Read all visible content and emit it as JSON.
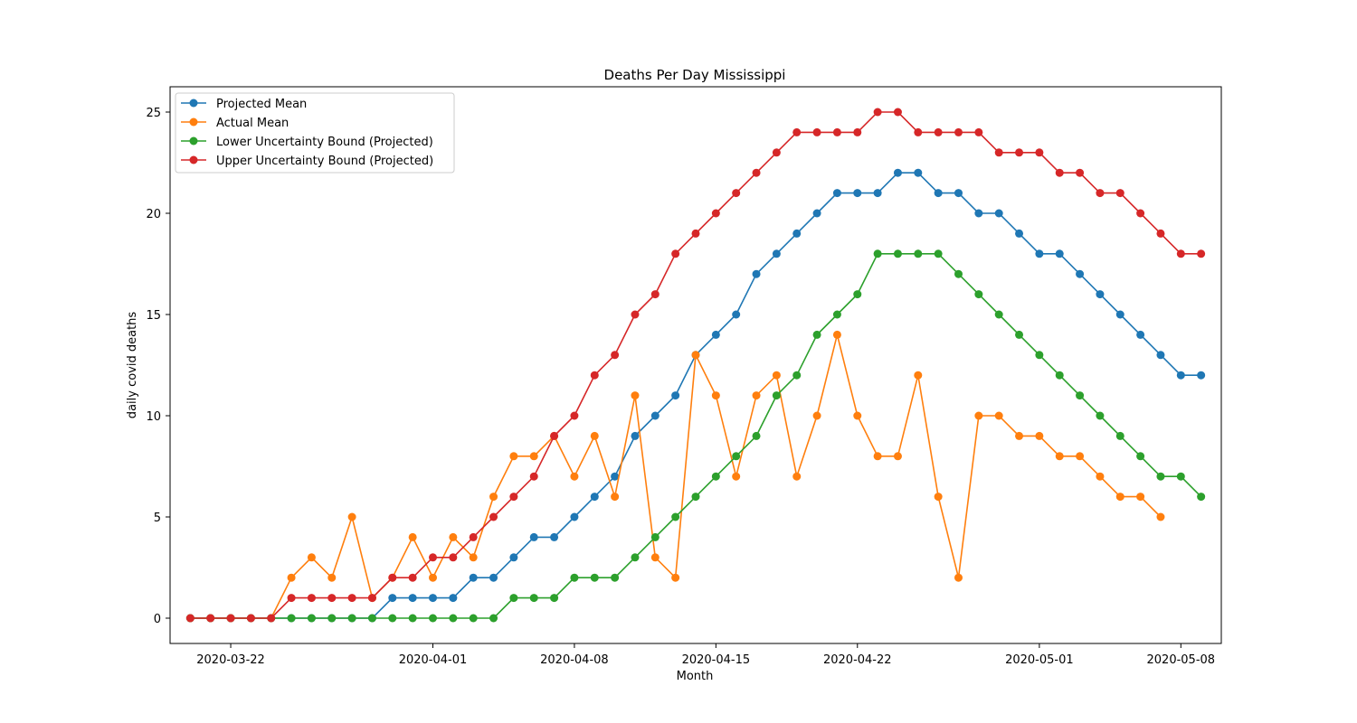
{
  "chart_data": {
    "type": "line",
    "title": "Deaths Per Day Mississippi",
    "xlabel": "Month",
    "ylabel": "daily covid deaths",
    "xlim": [
      "2020-03-19",
      "2020-05-10"
    ],
    "ylim": [
      -1.25,
      26.25
    ],
    "x_start": "2020-03-20",
    "x_ticks": [
      "2020-03-22",
      "2020-04-01",
      "2020-04-08",
      "2020-04-15",
      "2020-04-22",
      "2020-05-01",
      "2020-05-08"
    ],
    "y_ticks": [
      0,
      5,
      10,
      15,
      20,
      25
    ],
    "legend_position": "top-left",
    "grid": false,
    "series": [
      {
        "name": "Projected Mean",
        "color": "#1f77b4",
        "values": [
          0,
          0,
          0,
          0,
          0,
          0,
          0,
          0,
          0,
          0,
          1,
          1,
          1,
          1,
          2,
          2,
          3,
          4,
          4,
          5,
          6,
          7,
          9,
          10,
          11,
          13,
          14,
          15,
          17,
          18,
          19,
          20,
          21,
          21,
          21,
          22,
          22,
          21,
          21,
          20,
          20,
          19,
          18,
          18,
          17,
          16,
          15,
          14,
          13,
          12,
          12
        ]
      },
      {
        "name": "Actual Mean",
        "color": "#ff7f0e",
        "values": [
          0,
          0,
          0,
          0,
          0,
          2,
          3,
          2,
          5,
          1,
          2,
          4,
          2,
          4,
          3,
          6,
          8,
          8,
          9,
          7,
          9,
          6,
          11,
          3,
          2,
          13,
          11,
          7,
          11,
          12,
          7,
          10,
          14,
          10,
          8,
          8,
          12,
          6,
          2,
          10,
          10,
          9,
          9,
          8,
          8,
          7,
          6,
          6,
          5
        ]
      },
      {
        "name": "Lower Uncertainty Bound (Projected)",
        "color": "#2ca02c",
        "values": [
          0,
          0,
          0,
          0,
          0,
          0,
          0,
          0,
          0,
          0,
          0,
          0,
          0,
          0,
          0,
          0,
          1,
          1,
          1,
          2,
          2,
          2,
          3,
          4,
          5,
          6,
          7,
          8,
          9,
          11,
          12,
          14,
          15,
          16,
          18,
          18,
          18,
          18,
          17,
          16,
          15,
          14,
          13,
          12,
          11,
          10,
          9,
          8,
          7,
          7,
          6
        ]
      },
      {
        "name": "Upper Uncertainty Bound (Projected)",
        "color": "#d62728",
        "values": [
          0,
          0,
          0,
          0,
          0,
          1,
          1,
          1,
          1,
          1,
          2,
          2,
          3,
          3,
          4,
          5,
          6,
          7,
          9,
          10,
          12,
          13,
          15,
          16,
          18,
          19,
          20,
          21,
          22,
          23,
          24,
          24,
          24,
          24,
          25,
          25,
          24,
          24,
          24,
          24,
          23,
          23,
          23,
          22,
          22,
          21,
          21,
          20,
          19,
          18,
          18
        ]
      }
    ]
  }
}
